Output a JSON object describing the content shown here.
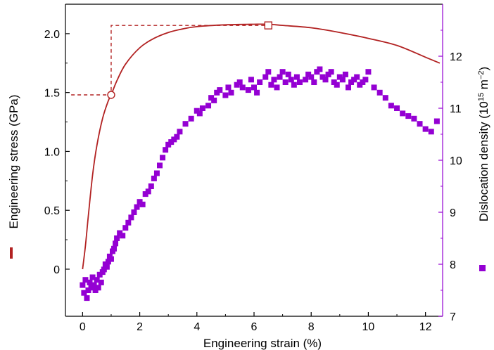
{
  "chart_data": {
    "type": "scatter",
    "title": "",
    "xlabel": "Engineering strain (%)",
    "ylabel_left": "Engineering stress (GPa)",
    "ylabel_right": "Dislocation density (10",
    "ylabel_right_exp": "15",
    "ylabel_right_unit": " m",
    "ylabel_right_unit_exp": "−2",
    "ylabel_right_close": ")",
    "xlim": [
      -0.6,
      12.6
    ],
    "ylim_left": [
      -0.4,
      2.25
    ],
    "ylim_right": [
      7.0,
      13.0
    ],
    "x_ticks": [
      0,
      2,
      4,
      6,
      8,
      10,
      12
    ],
    "y_left_ticks": [
      0,
      0.5,
      1.0,
      1.5,
      2.0
    ],
    "y_left_tick_labels": [
      "0",
      "0.5",
      "1.0",
      "1.5",
      "2.0"
    ],
    "y_right_ticks": [
      7,
      8,
      9,
      10,
      11,
      12
    ],
    "colors": {
      "stress": "#b22222",
      "dislocation": "#9400d3",
      "axis": "#000000"
    },
    "series": [
      {
        "key": "stress",
        "axis": "left",
        "style": "line",
        "x": [
          0,
          0.1,
          0.2,
          0.35,
          0.5,
          0.7,
          0.9,
          1.0,
          1.2,
          1.5,
          2.0,
          2.5,
          3.0,
          3.5,
          4.0,
          5.0,
          6.0,
          6.5,
          7.0,
          8.0,
          9.0,
          10.0,
          11.0,
          12.0,
          12.5
        ],
        "y": [
          0,
          0.2,
          0.45,
          0.8,
          1.05,
          1.28,
          1.43,
          1.48,
          1.6,
          1.74,
          1.88,
          1.96,
          2.01,
          2.04,
          2.06,
          2.075,
          2.08,
          2.08,
          2.07,
          2.05,
          2.01,
          1.96,
          1.9,
          1.8,
          1.75
        ]
      },
      {
        "key": "yield_guide",
        "axis": "left",
        "style": "dashed",
        "x": [
          -0.4,
          1.0,
          1.0,
          6.5
        ],
        "y": [
          1.48,
          1.48,
          2.07,
          2.07
        ]
      },
      {
        "key": "dislocation",
        "axis": "right",
        "style": "markers",
        "x": [
          0.0,
          0.05,
          0.1,
          0.15,
          0.2,
          0.25,
          0.3,
          0.35,
          0.4,
          0.45,
          0.5,
          0.55,
          0.6,
          0.65,
          0.7,
          0.75,
          0.8,
          0.85,
          0.9,
          0.95,
          1.0,
          1.05,
          1.1,
          1.15,
          1.2,
          1.3,
          1.4,
          1.5,
          1.6,
          1.7,
          1.8,
          1.9,
          2.0,
          2.1,
          2.2,
          2.3,
          2.4,
          2.5,
          2.6,
          2.7,
          2.8,
          2.9,
          3.0,
          3.1,
          3.2,
          3.3,
          3.4,
          3.6,
          3.8,
          4.0,
          4.1,
          4.2,
          4.4,
          4.5,
          4.6,
          4.7,
          4.8,
          5.0,
          5.1,
          5.2,
          5.4,
          5.5,
          5.6,
          5.8,
          5.9,
          6.0,
          6.1,
          6.2,
          6.4,
          6.5,
          6.6,
          6.7,
          6.8,
          6.9,
          7.0,
          7.1,
          7.2,
          7.3,
          7.4,
          7.5,
          7.6,
          7.8,
          7.9,
          8.0,
          8.1,
          8.2,
          8.3,
          8.4,
          8.5,
          8.6,
          8.7,
          8.8,
          8.9,
          9.0,
          9.1,
          9.2,
          9.3,
          9.4,
          9.5,
          9.6,
          9.7,
          9.8,
          9.9,
          10.0,
          10.2,
          10.4,
          10.6,
          10.8,
          11.0,
          11.2,
          11.4,
          11.6,
          11.8,
          12.0,
          12.2,
          12.4
        ],
        "y": [
          7.6,
          7.45,
          7.7,
          7.35,
          7.5,
          7.65,
          7.55,
          7.75,
          7.6,
          7.5,
          7.7,
          7.55,
          7.8,
          7.65,
          7.85,
          7.9,
          8.0,
          7.95,
          8.05,
          8.15,
          8.1,
          8.25,
          8.3,
          8.4,
          8.5,
          8.6,
          8.55,
          8.7,
          8.8,
          8.9,
          9.0,
          9.1,
          9.2,
          9.15,
          9.35,
          9.4,
          9.5,
          9.65,
          9.75,
          9.9,
          10.05,
          10.2,
          10.3,
          10.35,
          10.4,
          10.45,
          10.55,
          10.7,
          10.8,
          10.95,
          10.9,
          11.0,
          11.05,
          11.2,
          11.15,
          11.3,
          11.35,
          11.25,
          11.4,
          11.3,
          11.45,
          11.5,
          11.4,
          11.35,
          11.55,
          11.4,
          11.3,
          11.5,
          11.6,
          11.7,
          11.45,
          11.55,
          11.4,
          11.6,
          11.7,
          11.5,
          11.65,
          11.55,
          11.45,
          11.6,
          11.5,
          11.55,
          11.65,
          11.6,
          11.5,
          11.7,
          11.75,
          11.6,
          11.55,
          11.65,
          11.7,
          11.5,
          11.45,
          11.6,
          11.55,
          11.65,
          11.4,
          11.5,
          11.55,
          11.6,
          11.45,
          11.5,
          11.55,
          11.7,
          11.4,
          11.3,
          11.2,
          11.05,
          11.0,
          10.9,
          10.85,
          10.8,
          10.7,
          10.6,
          10.55,
          10.75
        ]
      }
    ]
  }
}
